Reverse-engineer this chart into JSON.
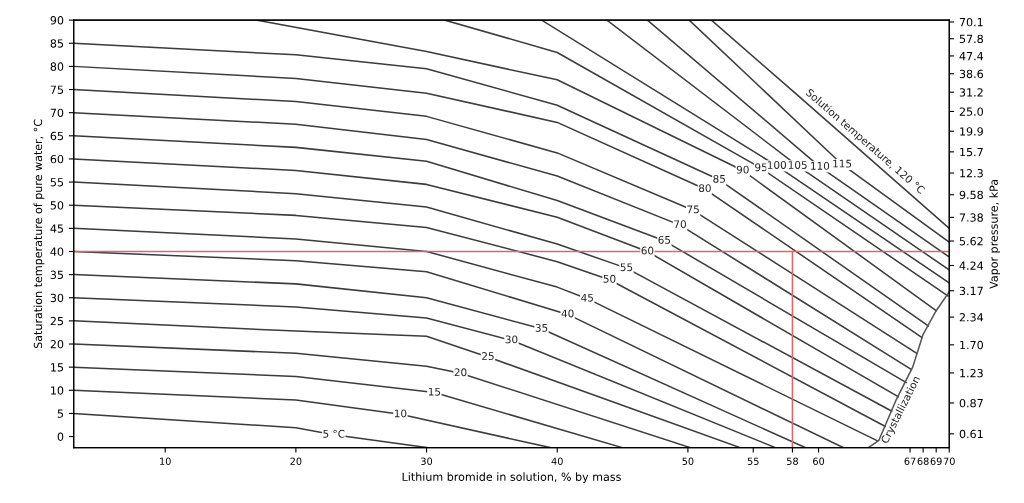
{
  "chart_data": {
    "type": "line",
    "xlabel": "Lithium bromide in solution, % by mass",
    "ylabel": "Saturation temperature of pure water, °C",
    "y2label": "Vapor pressure, kPa",
    "xlim": [
      3,
      70
    ],
    "xticks": [
      10,
      20,
      30,
      40,
      50,
      55,
      58,
      60,
      67,
      68,
      69,
      70
    ],
    "ylim": [
      -2.4,
      90
    ],
    "yticks": [
      0,
      5,
      10,
      15,
      20,
      25,
      30,
      35,
      40,
      45,
      50,
      55,
      60,
      65,
      70,
      75,
      80,
      85,
      90
    ],
    "log": "y2",
    "y2lim": [
      0.52,
      71.6
    ],
    "y2ticks": [
      0.61,
      0.87,
      1.23,
      {
        "value": 1.7,
        "label": "1.70"
      },
      2.34,
      3.17,
      4.24,
      5.62,
      7.38,
      9.58,
      12.3,
      15.7,
      19.9,
      {
        "value": 25,
        "label": "25.0"
      },
      31.2,
      38.6,
      47.4,
      57.8,
      70.1
    ],
    "grid": false,
    "legend": false,
    "series": [
      {
        "color": "#3c3c3c",
        "x": [
          3,
          20,
          22.9,
          30.1
        ],
        "values": [
          5,
          1.9,
          0.4,
          -2.4
        ]
      },
      {
        "color": "#3c3c3c",
        "x": [
          3,
          20,
          28.0,
          39.5
        ],
        "values": [
          10,
          7.9,
          4.8,
          -2.4
        ]
      },
      {
        "color": "#3c3c3c",
        "x": [
          3,
          20,
          30.6,
          45.0
        ],
        "values": [
          15,
          13,
          9.5,
          -2.4
        ]
      },
      {
        "color": "#3c3c3c",
        "x": [
          3,
          20,
          30,
          32.6,
          50.2
        ],
        "values": [
          20,
          18,
          15.2,
          13.7,
          -2.4
        ]
      },
      {
        "color": "#3c3c3c",
        "x": [
          3,
          20,
          30,
          34.7,
          54.0
        ],
        "values": [
          25,
          22.8,
          21.7,
          17.2,
          -2.4
        ]
      },
      {
        "color": "#3c3c3c",
        "x": [
          3,
          20,
          30,
          36.5,
          56.7
        ],
        "values": [
          30,
          28,
          25.6,
          20.8,
          -2.4
        ]
      },
      {
        "color": "#3c3c3c",
        "x": [
          3,
          20,
          30,
          38.8,
          59.0
        ],
        "values": [
          35,
          33,
          30.0,
          23.3,
          -2.4
        ]
      },
      {
        "color": "#3c3c3c",
        "x": [
          3,
          20,
          30,
          40.8,
          61.9
        ],
        "values": [
          40,
          38,
          35.6,
          26.4,
          -2.4
        ]
      },
      {
        "color": "#3c3c3c",
        "x": [
          3,
          20,
          30,
          40,
          42.3,
          64.5
        ],
        "values": [
          45,
          42.7,
          40.0,
          32.3,
          29.8,
          -0.9
        ]
      },
      {
        "color": "#3c3c3c",
        "x": [
          3,
          20,
          30,
          40,
          44.0,
          65.1
        ],
        "values": [
          50,
          47.8,
          45.2,
          37.8,
          33.9,
          2.2
        ]
      },
      {
        "color": "#3c3c3c",
        "x": [
          3,
          20,
          30,
          40,
          45.3,
          65.6
        ],
        "values": [
          55,
          52.5,
          49.6,
          41.6,
          36.4,
          5.5
        ]
      },
      {
        "color": "#3c3c3c",
        "x": [
          3,
          20,
          30,
          40,
          46.9,
          66.1
        ],
        "values": [
          60,
          57.5,
          54.5,
          47.4,
          40,
          8.6
        ]
      },
      {
        "color": "#3c3c3c",
        "x": [
          3,
          20,
          30,
          40,
          48.2,
          66.7
        ],
        "values": [
          65,
          62.5,
          59.5,
          51,
          42.3,
          11.7
        ]
      },
      {
        "color": "#3c3c3c",
        "x": [
          3,
          20,
          30,
          40,
          49.4,
          67.1
        ],
        "values": [
          70,
          67.5,
          64.2,
          56.3,
          45.7,
          14.5
        ]
      },
      {
        "color": "#3c3c3c",
        "x": [
          3,
          20,
          30,
          40,
          50.4,
          67.5
        ],
        "values": [
          75,
          72.4,
          69.2,
          61.3,
          48.9,
          18.0
        ]
      },
      {
        "color": "#3c3c3c",
        "x": [
          3,
          20,
          30,
          40,
          51.3,
          67.9
        ],
        "values": [
          80,
          77.4,
          74.2,
          67.9,
          53.5,
          21.4
        ]
      },
      {
        "color": "#3c3c3c",
        "x": [
          3,
          20,
          30,
          40,
          52.4,
          68.4
        ],
        "values": [
          85,
          82.5,
          79.5,
          71.6,
          55.5,
          23.9
        ]
      },
      {
        "color": "#3c3c3c",
        "x": [
          17.0,
          30,
          40,
          54.2,
          69.0
        ],
        "values": [
          90,
          83.2,
          77.1,
          57.5,
          27.2
        ]
      },
      {
        "color": "#3c3c3c",
        "x": [
          31.4,
          40,
          55.6,
          69.9
        ],
        "values": [
          90,
          83.0,
          58,
          30.4
        ]
      },
      {
        "color": "#3c3c3c",
        "x": [
          38.8,
          56.8,
          70
        ],
        "values": [
          90,
          58.5,
          33.2
        ]
      },
      {
        "color": "#3c3c3c",
        "x": [
          43.8,
          58.4,
          70
        ],
        "values": [
          90,
          58.5,
          36.0
        ]
      },
      {
        "color": "#3c3c3c",
        "x": [
          46.9,
          60.1,
          70
        ],
        "values": [
          90,
          58.3,
          38.8
        ]
      },
      {
        "color": "#3c3c3c",
        "x": [
          50.1,
          61.8,
          70
        ],
        "values": [
          90,
          58.8,
          42.0
        ]
      },
      {
        "color": "#3c3c3c",
        "x": [
          51.8,
          58.3,
          70
        ],
        "values": [
          90,
          74.0,
          45.0
        ]
      },
      {
        "color": "#555555",
        "x": [
          63.8,
          64.6,
          65.9,
          67.2,
          68.0,
          69.0,
          69.9,
          70
        ],
        "values": [
          -2.4,
          -0.9,
          7.7,
          15,
          22.1,
          27.2,
          30.9,
          31.4
        ]
      },
      {
        "color": "#e06666",
        "x": [
          3,
          70
        ],
        "values": [
          40,
          40
        ]
      },
      {
        "color": "#e06666",
        "x": [
          58,
          58
        ],
        "values": [
          40,
          -2.4
        ]
      }
    ],
    "annotations": [
      {
        "text": "5 °C",
        "x": 22.9,
        "y": 0.4
      },
      {
        "text": "10",
        "x": 28.0,
        "y": 4.8
      },
      {
        "text": "15",
        "x": 30.6,
        "y": 9.5
      },
      {
        "text": "20",
        "x": 32.6,
        "y": 13.7
      },
      {
        "text": "25",
        "x": 34.7,
        "y": 17.2
      },
      {
        "text": "30",
        "x": 36.5,
        "y": 20.8
      },
      {
        "text": "35",
        "x": 38.8,
        "y": 23.3
      },
      {
        "text": "40",
        "x": 40.8,
        "y": 26.4
      },
      {
        "text": "45",
        "x": 42.3,
        "y": 29.8
      },
      {
        "text": "50",
        "x": 44.0,
        "y": 33.9
      },
      {
        "text": "55",
        "x": 45.3,
        "y": 36.4
      },
      {
        "text": "60",
        "x": 46.9,
        "y": 40
      },
      {
        "text": "65",
        "x": 48.2,
        "y": 42.3
      },
      {
        "text": "70",
        "x": 49.4,
        "y": 45.7
      },
      {
        "text": "75",
        "x": 50.4,
        "y": 48.9
      },
      {
        "text": "80",
        "x": 51.3,
        "y": 53.5
      },
      {
        "text": "85",
        "x": 52.4,
        "y": 55.5
      },
      {
        "text": "90",
        "x": 54.2,
        "y": 57.5
      },
      {
        "text": "95",
        "x": 55.6,
        "y": 58
      },
      {
        "text": "100",
        "x": 56.8,
        "y": 58.5
      },
      {
        "text": "105",
        "x": 58.4,
        "y": 58.5
      },
      {
        "text": "110",
        "x": 60.1,
        "y": 58.3
      },
      {
        "text": "115",
        "x": 61.8,
        "y": 58.8
      },
      {
        "text": "Solution temperature, 120 °C",
        "x": 58.3,
        "y": 74.0
      },
      {
        "text": "Crystallization",
        "x": 67.2,
        "y": 15
      }
    ]
  }
}
